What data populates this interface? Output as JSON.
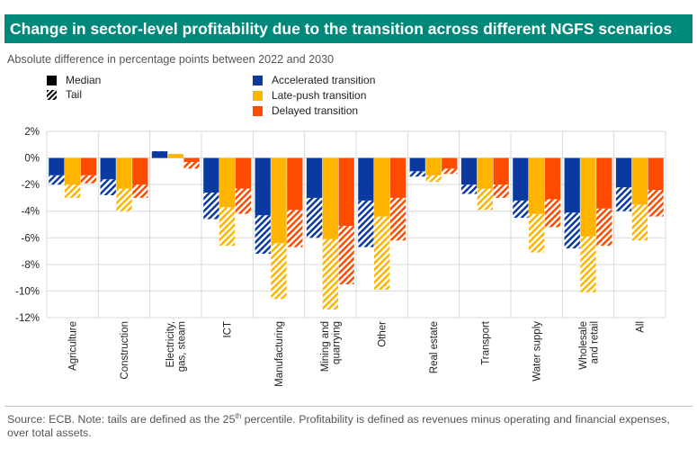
{
  "title": "Change in sector-level profitability due to the transition across different NGFS scenarios",
  "subtitle": "Absolute difference in percentage points between 2022 and 2030",
  "legend": {
    "median": "Median",
    "tail": "Tail",
    "accelerated": "Accelerated transition",
    "late_push": "Late-push transition",
    "delayed": "Delayed transition"
  },
  "footnote": {
    "part1": "Source: ECB. Note: tails are defined as the 25",
    "sup": "th",
    "part2": " percentile. Profitability is defined as revenues minus operating and financial expenses, over total assets."
  },
  "colors": {
    "accelerated": "#0a3aa0",
    "late_push": "#ffb400",
    "delayed": "#ff4b00",
    "title_bg": "#00897b"
  },
  "chart_data": {
    "type": "bar",
    "ylabel": "",
    "ylim": [
      -12,
      2
    ],
    "yticks": [
      "2%",
      "0%",
      "-2%",
      "-4%",
      "-6%",
      "-8%",
      "-10%",
      "-12%"
    ],
    "ytick_values": [
      2,
      0,
      -2,
      -4,
      -6,
      -8,
      -10,
      -12
    ],
    "grid": true,
    "categories": [
      [
        "Agriculture"
      ],
      [
        "Construction"
      ],
      [
        "Electricity,",
        "gas, steam"
      ],
      [
        "ICT"
      ],
      [
        "Manufacturing"
      ],
      [
        "Mining and",
        "quarrying"
      ],
      [
        "Other"
      ],
      [
        "Real estate"
      ],
      [
        "Transport"
      ],
      [
        "Water supply"
      ],
      [
        "Wholesale",
        "and retail"
      ],
      [
        "All"
      ]
    ],
    "series": [
      {
        "name": "Accelerated transition",
        "color_key": "accelerated",
        "median": [
          -1.3,
          -1.6,
          0.5,
          -2.6,
          -4.3,
          -3.0,
          -3.2,
          -1.0,
          -2.0,
          -3.2,
          -4.1,
          -2.2
        ],
        "tail": [
          -2.0,
          -2.8,
          0.1,
          -4.6,
          -7.2,
          -6.0,
          -6.7,
          -1.4,
          -2.7,
          -4.5,
          -6.8,
          -4.0
        ]
      },
      {
        "name": "Late-push transition",
        "color_key": "late_push",
        "median": [
          -2.0,
          -2.3,
          0.3,
          -3.7,
          -6.4,
          -6.1,
          -4.4,
          -1.3,
          -2.3,
          -4.2,
          -5.9,
          -3.5
        ],
        "tail": [
          -3.0,
          -4.0,
          0.0,
          -6.6,
          -10.6,
          -11.4,
          -9.9,
          -1.8,
          -3.9,
          -7.1,
          -10.1,
          -6.2
        ]
      },
      {
        "name": "Delayed transition",
        "color_key": "delayed",
        "median": [
          -1.3,
          -2.0,
          -0.3,
          -2.3,
          -3.9,
          -5.1,
          -3.0,
          -0.8,
          -2.0,
          -3.1,
          -3.8,
          -2.4
        ],
        "tail": [
          -1.9,
          -3.0,
          -0.8,
          -4.2,
          -6.7,
          -9.5,
          -6.2,
          -1.2,
          -3.0,
          -5.2,
          -6.6,
          -4.4
        ]
      }
    ]
  }
}
